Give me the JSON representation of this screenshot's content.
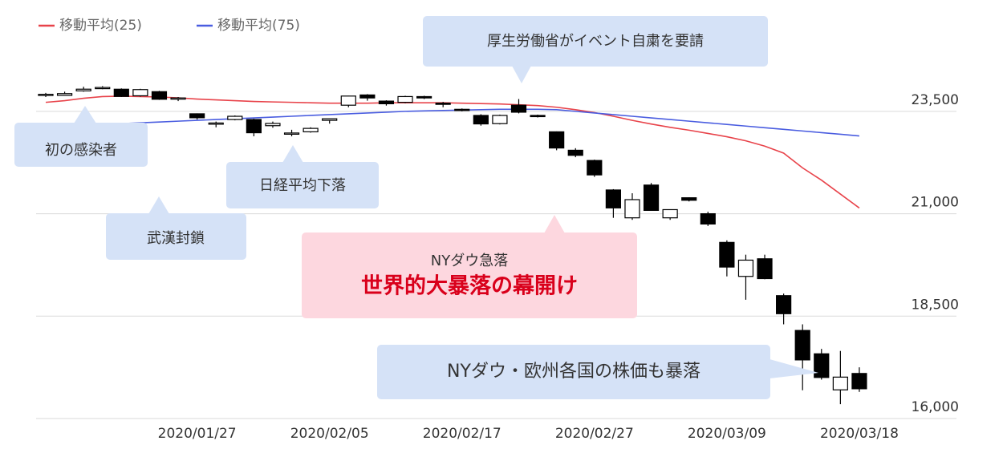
{
  "chart_data": {
    "type": "candlestick",
    "x": [
      null,
      null,
      null,
      null,
      null,
      null,
      null,
      null,
      "2020/01/27",
      null,
      null,
      null,
      null,
      null,
      null,
      "2020/02/05",
      null,
      null,
      null,
      null,
      null,
      null,
      "2020/02/17",
      null,
      null,
      null,
      null,
      null,
      null,
      "2020/02/27",
      null,
      null,
      null,
      null,
      null,
      null,
      "2020/03/09",
      null,
      null,
      null,
      null,
      null,
      null,
      "2020/03/18"
    ],
    "open": [
      23900,
      23890,
      24000,
      24080,
      24040,
      23880,
      23980,
      23800,
      23440,
      23210,
      23300,
      23300,
      23150,
      22950,
      23000,
      23280,
      23650,
      23900,
      23750,
      23720,
      23860,
      23700,
      23550,
      23400,
      23200,
      23650,
      23400,
      23000,
      22550,
      22300,
      21580,
      20900,
      21700,
      20900,
      21390,
      21000,
      20300,
      19470,
      19900,
      19000,
      18150,
      17580,
      16700,
      17100
    ],
    "high": [
      23950,
      23980,
      24100,
      24115,
      24060,
      24050,
      24000,
      23850,
      23450,
      23250,
      23400,
      23320,
      23250,
      23050,
      23110,
      23330,
      23880,
      23920,
      23770,
      23880,
      23880,
      23730,
      23570,
      23430,
      23420,
      23800,
      23420,
      23010,
      22600,
      22320,
      21600,
      21500,
      21750,
      21100,
      21400,
      21050,
      20350,
      20000,
      20000,
      19050,
      18300,
      17700,
      17650,
      17250
    ],
    "low": [
      23850,
      23880,
      23980,
      24040,
      23850,
      23860,
      23780,
      23750,
      23300,
      23110,
      23280,
      22890,
      23100,
      22890,
      22980,
      23200,
      23600,
      23760,
      23640,
      23700,
      23800,
      23600,
      23500,
      23150,
      23180,
      23450,
      23350,
      22550,
      22380,
      21900,
      20900,
      20850,
      21080,
      20850,
      21300,
      20700,
      19470,
      18900,
      19400,
      18300,
      16690,
      16950,
      16350,
      16650
    ],
    "close": [
      23916,
      23933,
      24041,
      24083,
      23864,
      24031,
      23795,
      23827,
      23343,
      23215,
      23379,
      22977,
      23205,
      22971,
      23084,
      23319,
      23873,
      23827,
      23685,
      23861,
      23827,
      23687,
      23523,
      23193,
      23400,
      23479,
      23386,
      22605,
      22426,
      21948,
      21142,
      21344,
      21082,
      21100,
      21329,
      20749,
      19698,
      19867,
      19416,
      18559,
      17431,
      17002,
      17011,
      16726
    ],
    "series": [
      {
        "name": "移動平均(25)",
        "color": "#e8434a",
        "values": [
          23720,
          23760,
          23820,
          23860,
          23870,
          23860,
          23850,
          23830,
          23800,
          23780,
          23760,
          23740,
          23730,
          23720,
          23710,
          23700,
          23700,
          23700,
          23710,
          23710,
          23710,
          23710,
          23700,
          23690,
          23680,
          23660,
          23640,
          23600,
          23540,
          23470,
          23380,
          23280,
          23190,
          23110,
          23040,
          22960,
          22880,
          22780,
          22650,
          22480,
          22120,
          21820,
          21480,
          21140
        ]
      },
      {
        "name": "移動平均(75)",
        "color": "#4a5de0",
        "values": [
          23120,
          23140,
          23160,
          23180,
          23200,
          23220,
          23240,
          23260,
          23280,
          23300,
          23320,
          23340,
          23360,
          23380,
          23400,
          23420,
          23440,
          23460,
          23480,
          23500,
          23510,
          23520,
          23530,
          23540,
          23550,
          23550,
          23550,
          23540,
          23500,
          23460,
          23420,
          23380,
          23340,
          23300,
          23260,
          23220,
          23180,
          23140,
          23100,
          23060,
          23020,
          22980,
          22940,
          22900
        ]
      }
    ],
    "ylim": [
      16000,
      24300
    ],
    "yticks": [
      {
        "value": 16000,
        "label": "16,000"
      },
      {
        "value": 18500,
        "label": "18,500"
      },
      {
        "value": 21000,
        "label": "21,000"
      },
      {
        "value": 23500,
        "label": "23,500"
      }
    ],
    "grid": true,
    "legend": "top-left",
    "annotations": [
      {
        "text": "厚生労働省がイベント自粛を要請"
      },
      {
        "text": "初の感染者"
      },
      {
        "text": "日経平均下落"
      },
      {
        "text": "武漢封鎖"
      },
      {
        "subtitle": "NYダウ急落",
        "text": "世界的大暴落の幕開け"
      },
      {
        "text": "NYダウ・欧州各国の株価も暴落"
      }
    ]
  }
}
